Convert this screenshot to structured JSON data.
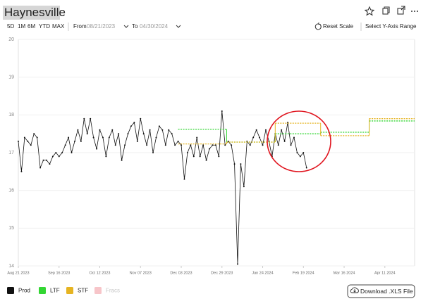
{
  "header": {
    "title": "Haynesville"
  },
  "toolbar": {
    "ranges": [
      "5D",
      "1M",
      "6M",
      "YTD",
      "MAX"
    ],
    "from_label": "From",
    "from": "08/21/2023",
    "to_label": "To",
    "to": "04/30/2024",
    "reset": "Reset Scale",
    "y_range": "Select Y-Axis Range"
  },
  "download": "Download .XLS File",
  "chart_data": {
    "type": "line",
    "xlim": [
      "2023-08-21",
      "2024-04-30"
    ],
    "xticks": [
      {
        "value": "2023-08-21",
        "label": "Aug 21 2023"
      },
      {
        "value": "2023-09-16",
        "label": "Sep 16 2023"
      },
      {
        "value": "2023-10-12",
        "label": "Oct 12 2023"
      },
      {
        "value": "2023-11-07",
        "label": "Nov 07 2023"
      },
      {
        "value": "2023-12-03",
        "label": "Dec 03 2023"
      },
      {
        "value": "2023-12-29",
        "label": "Dec 29 2023"
      },
      {
        "value": "2024-01-24",
        "label": "Jan 24 2024"
      },
      {
        "value": "2024-02-19",
        "label": "Feb 19 2024"
      },
      {
        "value": "2024-03-16",
        "label": "Mar 16 2024"
      },
      {
        "value": "2024-04-11",
        "label": "Apr 11 2024"
      }
    ],
    "ylim": [
      14,
      20
    ],
    "yticks": [
      14,
      15,
      16,
      17,
      18,
      19,
      20
    ],
    "grid": true,
    "series": [
      {
        "name": "Prod",
        "color": "#111111",
        "style": "line",
        "x": [
          "2023-08-21",
          "2023-08-23",
          "2023-08-25",
          "2023-08-27",
          "2023-08-29",
          "2023-08-31",
          "2023-09-02",
          "2023-09-04",
          "2023-09-06",
          "2023-09-08",
          "2023-09-10",
          "2023-09-12",
          "2023-09-14",
          "2023-09-16",
          "2023-09-18",
          "2023-09-20",
          "2023-09-22",
          "2023-09-24",
          "2023-09-26",
          "2023-09-28",
          "2023-09-30",
          "2023-10-02",
          "2023-10-04",
          "2023-10-06",
          "2023-10-08",
          "2023-10-10",
          "2023-10-12",
          "2023-10-14",
          "2023-10-16",
          "2023-10-18",
          "2023-10-20",
          "2023-10-22",
          "2023-10-24",
          "2023-10-26",
          "2023-10-28",
          "2023-10-30",
          "2023-11-01",
          "2023-11-03",
          "2023-11-05",
          "2023-11-07",
          "2023-11-09",
          "2023-11-11",
          "2023-11-13",
          "2023-11-15",
          "2023-11-17",
          "2023-11-19",
          "2023-11-21",
          "2023-11-23",
          "2023-11-25",
          "2023-11-27",
          "2023-11-29",
          "2023-12-01",
          "2023-12-03",
          "2023-12-05",
          "2023-12-07",
          "2023-12-09",
          "2023-12-11",
          "2023-12-13",
          "2023-12-15",
          "2023-12-17",
          "2023-12-19",
          "2023-12-21",
          "2023-12-23",
          "2023-12-25",
          "2023-12-27",
          "2023-12-29",
          "2023-12-31",
          "2024-01-02",
          "2024-01-04",
          "2024-01-06",
          "2024-01-08",
          "2024-01-10",
          "2024-01-12",
          "2024-01-14",
          "2024-01-16",
          "2024-01-18",
          "2024-01-20",
          "2024-01-22",
          "2024-01-24",
          "2024-01-26",
          "2024-01-28",
          "2024-01-30",
          "2024-02-01",
          "2024-02-03",
          "2024-02-05",
          "2024-02-07",
          "2024-02-09",
          "2024-02-11",
          "2024-02-13",
          "2024-02-15",
          "2024-02-17",
          "2024-02-19",
          "2024-02-21"
        ],
        "values": [
          17.3,
          16.5,
          17.4,
          17.3,
          17.2,
          17.5,
          17.4,
          16.6,
          16.8,
          16.8,
          16.7,
          16.9,
          17.0,
          16.9,
          17.0,
          17.2,
          17.4,
          17.0,
          17.3,
          17.6,
          17.3,
          17.9,
          17.5,
          17.9,
          17.4,
          17.1,
          17.6,
          17.4,
          16.9,
          17.4,
          17.6,
          17.2,
          17.5,
          16.8,
          17.2,
          17.5,
          17.7,
          17.8,
          17.3,
          17.9,
          17.5,
          17.2,
          17.6,
          17.0,
          17.4,
          17.7,
          17.6,
          17.2,
          17.6,
          17.5,
          17.2,
          17.3,
          17.2,
          16.3,
          17.0,
          17.2,
          16.9,
          17.4,
          16.9,
          17.2,
          16.8,
          17.1,
          17.2,
          17.2,
          16.9,
          18.1,
          17.2,
          17.3,
          17.2,
          16.7,
          14.05,
          16.7,
          16.1,
          17.3,
          17.2,
          17.4,
          17.6,
          17.4,
          17.2,
          17.6,
          17.3,
          16.9,
          17.5,
          17.2,
          17.6,
          17.3,
          17.8,
          17.2,
          17.4,
          17.0,
          16.9,
          17.0,
          16.6
        ]
      },
      {
        "name": "LTF",
        "color": "#33d633",
        "style": "step",
        "x": [
          "2023-12-01",
          "2024-01-01",
          "2024-02-01",
          "2024-03-01",
          "2024-04-01"
        ],
        "values": [
          17.62,
          17.28,
          17.5,
          17.54,
          17.84
        ]
      },
      {
        "name": "STF",
        "color": "#e6b422",
        "style": "step",
        "x": [
          "2023-12-01",
          "2024-01-01",
          "2024-02-01",
          "2024-03-01",
          "2024-04-01"
        ],
        "values": [
          17.23,
          17.28,
          17.78,
          17.45,
          17.9
        ]
      },
      {
        "name": "Fracs",
        "color": "#f7c5c9",
        "style": "step",
        "visible": false,
        "x": [],
        "values": []
      }
    ]
  }
}
